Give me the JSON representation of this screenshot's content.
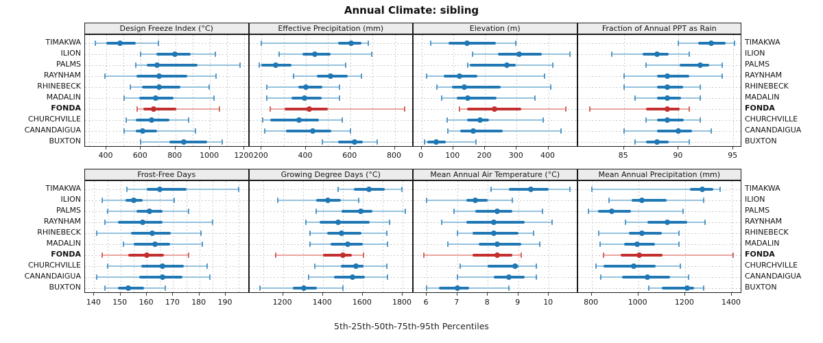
{
  "title": "Annual Climate: sibling",
  "caption": "5th-25th-50th-75th-95th Percentiles",
  "locations": [
    "TIMAKWA",
    "ILION",
    "PALMS",
    "RAYNHAM",
    "RHINEBECK",
    "MADALIN",
    "FONDA",
    "CHURCHVILLE",
    "CANANDAIGUA",
    "BUXTON"
  ],
  "highlight_location": "FONDA",
  "colors": {
    "blue_main": "#1f77b4",
    "blue_light": "#94c1dd",
    "blue_cap": "#4f97c6",
    "red_main": "#c32e2e",
    "red_light": "#eaa49f",
    "red_cap": "#d4625c",
    "strip_bg": "#ececec",
    "grid": "#c7c7c7",
    "border": "#1a1a1a"
  },
  "chart_data": {
    "type": "dotplot-percentiles",
    "percentiles": [
      5,
      25,
      50,
      75,
      95
    ],
    "legend_position": "none",
    "grid": "dotted",
    "panels": [
      {
        "title": "Design Freeze Index (°C)",
        "row": 0,
        "col": 0,
        "xlim": [
          277,
          1228
        ],
        "ticks": [
          400,
          600,
          800,
          1000,
          1200
        ],
        "grid_step": 100,
        "values": [
          [
            335,
            400,
            480,
            570,
            700
          ],
          [
            600,
            690,
            795,
            890,
            1030
          ],
          [
            570,
            635,
            695,
            930,
            1175
          ],
          [
            390,
            575,
            705,
            870,
            1035
          ],
          [
            540,
            605,
            705,
            830,
            995
          ],
          [
            505,
            590,
            685,
            790,
            1025
          ],
          [
            580,
            615,
            675,
            805,
            1055
          ],
          [
            515,
            570,
            660,
            765,
            875
          ],
          [
            505,
            570,
            610,
            695,
            915
          ],
          [
            600,
            765,
            850,
            985,
            1070
          ]
        ]
      },
      {
        "title": "Effective Precipitation (mm)",
        "row": 0,
        "col": 1,
        "xlim": [
          145,
          885
        ],
        "ticks": [
          200,
          400,
          600,
          800
        ],
        "grid_step": 100,
        "values": [
          [
            200,
            545,
            605,
            650,
            680
          ],
          [
            280,
            385,
            440,
            510,
            695
          ],
          [
            190,
            200,
            265,
            335,
            580
          ],
          [
            345,
            450,
            510,
            590,
            650
          ],
          [
            225,
            365,
            400,
            475,
            550
          ],
          [
            225,
            335,
            395,
            470,
            550
          ],
          [
            240,
            305,
            415,
            500,
            845
          ],
          [
            205,
            240,
            370,
            460,
            565
          ],
          [
            215,
            310,
            430,
            515,
            600
          ],
          [
            475,
            545,
            620,
            655,
            720
          ]
        ]
      },
      {
        "title": "Elevation (m)",
        "row": 0,
        "col": 2,
        "xlim": [
          -25,
          493
        ],
        "ticks": [
          0,
          100,
          200,
          300,
          400
        ],
        "grid_step": 100,
        "values": [
          [
            30,
            85,
            143,
            235,
            297
          ],
          [
            160,
            240,
            309,
            380,
            468
          ],
          [
            146,
            152,
            268,
            298,
            415
          ],
          [
            17,
            70,
            120,
            176,
            388
          ],
          [
            49,
            96,
            136,
            249,
            408
          ],
          [
            64,
            111,
            146,
            236,
            357
          ],
          [
            120,
            143,
            230,
            314,
            454
          ],
          [
            80,
            143,
            185,
            212,
            384
          ],
          [
            82,
            122,
            162,
            256,
            440
          ],
          [
            9,
            19,
            46,
            77,
            172
          ]
        ]
      },
      {
        "title": "Fraction of Annual PPT as Rain",
        "row": 0,
        "col": 3,
        "xlim": [
          80.8,
          95.8
        ],
        "ticks": [
          85,
          90,
          95
        ],
        "grid_step": 5,
        "values": [
          [
            90,
            91.8,
            93,
            94.3,
            95.1
          ],
          [
            83.9,
            86.7,
            88,
            89.1,
            91
          ],
          [
            87,
            90.1,
            92,
            92.8,
            94
          ],
          [
            85,
            88,
            89,
            91,
            94
          ],
          [
            85,
            88,
            89,
            90.4,
            92
          ],
          [
            86,
            88,
            89,
            90.2,
            92
          ],
          [
            81.9,
            87,
            89,
            90.1,
            91
          ],
          [
            87,
            88,
            89,
            90.5,
            92
          ],
          [
            85,
            88,
            90,
            91.2,
            93
          ],
          [
            86,
            87,
            88,
            89.1,
            91
          ]
        ]
      },
      {
        "title": "Frost-Free Days",
        "row": 1,
        "col": 0,
        "xlim": [
          136.5,
          199
        ],
        "ticks": [
          140,
          150,
          160,
          170,
          180,
          190
        ],
        "grid_step": 5,
        "values": [
          [
            152.5,
            160,
            165,
            175,
            195
          ],
          [
            143,
            152,
            155,
            158.5,
            170.5
          ],
          [
            145,
            156,
            161,
            166,
            176
          ],
          [
            144,
            149,
            158.5,
            166,
            185
          ],
          [
            141,
            154,
            162,
            169,
            180.5
          ],
          [
            151,
            155,
            163,
            169,
            181
          ],
          [
            143,
            153,
            160,
            166.5,
            176
          ],
          [
            145,
            158,
            166,
            174,
            183
          ],
          [
            141,
            157,
            166,
            173.5,
            184
          ],
          [
            144,
            149,
            153,
            159,
            167
          ]
        ]
      },
      {
        "title": "Growing Degree Days (°C)",
        "row": 1,
        "col": 1,
        "xlim": [
          1031,
          1855
        ],
        "ticks": [
          1200,
          1400,
          1600,
          1800
        ],
        "grid_step": 100,
        "values": [
          [
            1475,
            1555,
            1630,
            1710,
            1795
          ],
          [
            1175,
            1365,
            1425,
            1490,
            1580
          ],
          [
            1365,
            1495,
            1590,
            1650,
            1815
          ],
          [
            1315,
            1385,
            1475,
            1635,
            1735
          ],
          [
            1335,
            1420,
            1495,
            1595,
            1720
          ],
          [
            1335,
            1440,
            1525,
            1600,
            1725
          ],
          [
            1165,
            1400,
            1500,
            1545,
            1605
          ],
          [
            1360,
            1490,
            1565,
            1605,
            1720
          ],
          [
            1330,
            1455,
            1550,
            1610,
            1725
          ],
          [
            1085,
            1250,
            1305,
            1370,
            1500
          ]
        ]
      },
      {
        "title": "Mean Annual Air Temperature (°C)",
        "row": 1,
        "col": 2,
        "xlim": [
          5.57,
          10.95
        ],
        "ticks": [
          6,
          7,
          8,
          9,
          10
        ],
        "grid_step": 1,
        "values": [
          [
            8.1,
            8.7,
            9.4,
            10.0,
            10.7
          ],
          [
            6.0,
            7.3,
            7.6,
            8.0,
            8.8
          ],
          [
            6.9,
            7.6,
            8.3,
            8.8,
            9.8
          ],
          [
            6.5,
            7.3,
            8.2,
            9.2,
            10.1
          ],
          [
            7.0,
            7.5,
            8.2,
            9.0,
            9.5
          ],
          [
            6.7,
            7.7,
            8.3,
            9.1,
            9.7
          ],
          [
            5.9,
            7.5,
            8.3,
            8.8,
            9.1
          ],
          [
            7.1,
            8.0,
            8.9,
            9.0,
            9.6
          ],
          [
            7.0,
            8.2,
            8.7,
            9.2,
            9.6
          ],
          [
            6.0,
            6.4,
            7.0,
            7.4,
            8.7
          ]
        ]
      },
      {
        "title": "Mean Annual Precipitation (mm)",
        "row": 1,
        "col": 3,
        "xlim": [
          741,
          1444
        ],
        "ticks": [
          800,
          1000,
          1200,
          1400
        ],
        "grid_step": 200,
        "values": [
          [
            800,
            1220,
            1275,
            1320,
            1350
          ],
          [
            875,
            970,
            1015,
            1120,
            1280
          ],
          [
            785,
            827,
            885,
            970,
            1190
          ],
          [
            945,
            1040,
            1125,
            1210,
            1285
          ],
          [
            830,
            960,
            1015,
            1100,
            1175
          ],
          [
            835,
            940,
            995,
            1070,
            1175
          ],
          [
            850,
            925,
            1005,
            1105,
            1405
          ],
          [
            820,
            850,
            980,
            1075,
            1180
          ],
          [
            840,
            930,
            1040,
            1135,
            1215
          ],
          [
            1045,
            1100,
            1210,
            1240,
            1280
          ]
        ]
      }
    ]
  }
}
